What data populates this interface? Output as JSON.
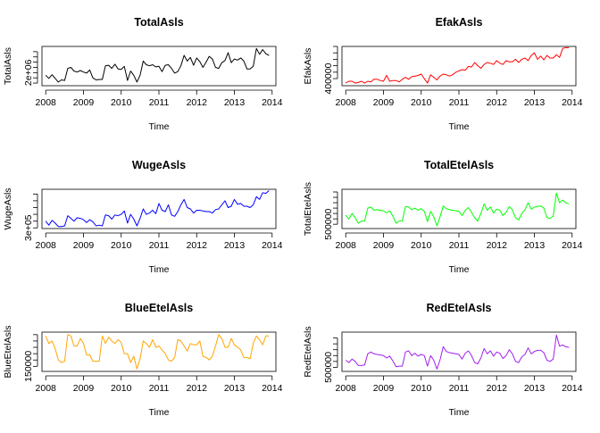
{
  "figure": {
    "background": "#ffffff"
  },
  "chart_data": [
    {
      "type": "line",
      "title": "TotalAsls",
      "xlabel": "Time",
      "ylabel": "TotalAsls",
      "color": "#000000",
      "xlim": [
        2007.9,
        2014.1
      ],
      "ylim": [
        1750000,
        2500000
      ],
      "x_ticks": [
        2008,
        2009,
        2010,
        2011,
        2012,
        2013,
        2014
      ],
      "y_ticks": [
        1800000,
        1900000,
        2000000,
        2100000,
        2200000,
        2300000,
        2400000
      ],
      "y_tick_labels": [
        "",
        "",
        "2e+06",
        "",
        "",
        "",
        ""
      ],
      "x": [
        2008.0,
        2008.083,
        2008.167,
        2008.25,
        2008.333,
        2008.417,
        2008.5,
        2008.583,
        2008.667,
        2008.75,
        2008.833,
        2008.917,
        2009.0,
        2009.083,
        2009.167,
        2009.25,
        2009.333,
        2009.417,
        2009.5,
        2009.583,
        2009.667,
        2009.75,
        2009.833,
        2009.917,
        2010.0,
        2010.083,
        2010.167,
        2010.25,
        2010.333,
        2010.417,
        2010.5,
        2010.583,
        2010.667,
        2010.75,
        2010.833,
        2010.917,
        2011.0,
        2011.083,
        2011.167,
        2011.25,
        2011.333,
        2011.417,
        2011.5,
        2011.583,
        2011.667,
        2011.75,
        2011.833,
        2011.917,
        2012.0,
        2012.083,
        2012.167,
        2012.25,
        2012.333,
        2012.417,
        2012.5,
        2012.583,
        2012.667,
        2012.75,
        2012.833,
        2012.917,
        2013.0,
        2013.083,
        2013.167,
        2013.25,
        2013.333,
        2013.417,
        2013.5,
        2013.583,
        2013.667,
        2013.75,
        2013.833,
        2013.917
      ],
      "values": [
        1950000,
        1890000,
        1960000,
        1890000,
        1820000,
        1860000,
        1850000,
        2080000,
        2100000,
        2030000,
        2010000,
        2040000,
        2010000,
        1990000,
        2050000,
        1900000,
        1860000,
        1870000,
        1870000,
        2130000,
        2140000,
        2080000,
        2160000,
        2070000,
        2060000,
        2120000,
        1850000,
        2030000,
        1950000,
        1820000,
        1950000,
        2220000,
        2150000,
        2130000,
        2150000,
        2110000,
        2120000,
        2020000,
        2140000,
        2150000,
        2080000,
        1990000,
        2020000,
        2130000,
        2330000,
        2220000,
        2290000,
        2140000,
        2280000,
        2210000,
        2100000,
        2200000,
        2310000,
        2260000,
        2100000,
        2080000,
        2190000,
        2230000,
        2380000,
        2190000,
        2260000,
        2240000,
        2280000,
        2220000,
        2070000,
        2070000,
        2120000,
        2460000,
        2350000,
        2440000,
        2360000,
        2330000
      ]
    },
    {
      "type": "line",
      "title": "EfakAsls",
      "xlabel": "Time",
      "ylabel": "EfakAsls",
      "color": "#ff0000",
      "xlim": [
        2007.9,
        2014.1
      ],
      "ylim": [
        290000,
        900000
      ],
      "x_ticks": [
        2008,
        2009,
        2010,
        2011,
        2012,
        2013,
        2014
      ],
      "y_ticks": [
        400000,
        500000,
        600000,
        700000,
        800000,
        900000
      ],
      "y_tick_labels": [
        "400000",
        "",
        "",
        "",
        "",
        ""
      ],
      "x": [
        2008.0,
        2008.083,
        2008.167,
        2008.25,
        2008.333,
        2008.417,
        2008.5,
        2008.583,
        2008.667,
        2008.75,
        2008.833,
        2008.917,
        2009.0,
        2009.083,
        2009.167,
        2009.25,
        2009.333,
        2009.417,
        2009.5,
        2009.583,
        2009.667,
        2009.75,
        2009.833,
        2009.917,
        2010.0,
        2010.083,
        2010.167,
        2010.25,
        2010.333,
        2010.417,
        2010.5,
        2010.583,
        2010.667,
        2010.75,
        2010.833,
        2010.917,
        2011.0,
        2011.083,
        2011.167,
        2011.25,
        2011.333,
        2011.417,
        2011.5,
        2011.583,
        2011.667,
        2011.75,
        2011.833,
        2011.917,
        2012.0,
        2012.083,
        2012.167,
        2012.25,
        2012.333,
        2012.417,
        2012.5,
        2012.583,
        2012.667,
        2012.75,
        2012.833,
        2012.917,
        2013.0,
        2013.083,
        2013.167,
        2013.25,
        2013.333,
        2013.417,
        2013.5,
        2013.583,
        2013.667,
        2013.75,
        2013.833,
        2013.917
      ],
      "values": [
        330000,
        360000,
        360000,
        330000,
        340000,
        360000,
        330000,
        360000,
        350000,
        390000,
        390000,
        370000,
        360000,
        450000,
        360000,
        370000,
        370000,
        350000,
        390000,
        420000,
        390000,
        430000,
        440000,
        450000,
        470000,
        400000,
        330000,
        460000,
        420000,
        380000,
        440000,
        470000,
        460000,
        440000,
        460000,
        500000,
        520000,
        540000,
        530000,
        590000,
        580000,
        650000,
        600000,
        560000,
        620000,
        650000,
        640000,
        620000,
        680000,
        640000,
        620000,
        680000,
        660000,
        660000,
        700000,
        650000,
        700000,
        720000,
        680000,
        760000,
        800000,
        700000,
        750000,
        690000,
        760000,
        720000,
        720000,
        770000,
        730000,
        870000,
        880000,
        880000
      ]
    },
    {
      "type": "line",
      "title": "WugeAsls",
      "xlabel": "Time",
      "ylabel": "WugeAsls",
      "color": "#0000ff",
      "xlim": [
        2007.9,
        2014.1
      ],
      "ylim": [
        290000,
        870000
      ],
      "x_ticks": [
        2008,
        2009,
        2010,
        2011,
        2012,
        2013,
        2014
      ],
      "y_ticks": [
        300000,
        400000,
        500000,
        600000,
        700000,
        800000
      ],
      "y_tick_labels": [
        "3e+05",
        "",
        "",
        "",
        "",
        ""
      ],
      "x": [
        2008.0,
        2008.083,
        2008.167,
        2008.25,
        2008.333,
        2008.417,
        2008.5,
        2008.583,
        2008.667,
        2008.75,
        2008.833,
        2008.917,
        2009.0,
        2009.083,
        2009.167,
        2009.25,
        2009.333,
        2009.417,
        2009.5,
        2009.583,
        2009.667,
        2009.75,
        2009.833,
        2009.917,
        2010.0,
        2010.083,
        2010.167,
        2010.25,
        2010.333,
        2010.417,
        2010.5,
        2010.583,
        2010.667,
        2010.75,
        2010.833,
        2010.917,
        2011.0,
        2011.083,
        2011.167,
        2011.25,
        2011.333,
        2011.417,
        2011.5,
        2011.583,
        2011.667,
        2011.75,
        2011.833,
        2011.917,
        2012.0,
        2012.083,
        2012.167,
        2012.25,
        2012.333,
        2012.417,
        2012.5,
        2012.583,
        2012.667,
        2012.75,
        2012.833,
        2012.917,
        2013.0,
        2013.083,
        2013.167,
        2013.25,
        2013.333,
        2013.417,
        2013.5,
        2013.583,
        2013.667,
        2013.75,
        2013.833,
        2013.917
      ],
      "values": [
        400000,
        340000,
        410000,
        370000,
        320000,
        320000,
        330000,
        480000,
        440000,
        400000,
        450000,
        440000,
        420000,
        380000,
        420000,
        390000,
        330000,
        340000,
        330000,
        490000,
        480000,
        430000,
        490000,
        480000,
        500000,
        550000,
        370000,
        500000,
        430000,
        330000,
        440000,
        580000,
        500000,
        520000,
        560000,
        510000,
        660000,
        560000,
        540000,
        640000,
        490000,
        470000,
        540000,
        640000,
        720000,
        600000,
        580000,
        520000,
        560000,
        560000,
        550000,
        540000,
        540000,
        520000,
        570000,
        580000,
        640000,
        700000,
        600000,
        620000,
        720000,
        650000,
        660000,
        620000,
        620000,
        600000,
        640000,
        760000,
        720000,
        820000,
        810000,
        850000
      ]
    },
    {
      "type": "line",
      "title": "TotalEtelAsls",
      "xlabel": "Time",
      "ylabel": "TotalEtelAsls",
      "color": "#00ff00",
      "xlim": [
        2007.9,
        2014.1
      ],
      "ylim": [
        420000,
        1150000
      ],
      "x_ticks": [
        2008,
        2009,
        2010,
        2011,
        2012,
        2013,
        2014
      ],
      "y_ticks": [
        500000,
        600000,
        700000,
        800000,
        900000,
        1000000,
        1100000
      ],
      "y_tick_labels": [
        "500000",
        "",
        "",
        "",
        "",
        "",
        ""
      ],
      "x": [
        2008.0,
        2008.083,
        2008.167,
        2008.25,
        2008.333,
        2008.417,
        2008.5,
        2008.583,
        2008.667,
        2008.75,
        2008.833,
        2008.917,
        2009.0,
        2009.083,
        2009.167,
        2009.25,
        2009.333,
        2009.417,
        2009.5,
        2009.583,
        2009.667,
        2009.75,
        2009.833,
        2009.917,
        2010.0,
        2010.083,
        2010.167,
        2010.25,
        2010.333,
        2010.417,
        2010.5,
        2010.583,
        2010.667,
        2010.75,
        2010.833,
        2010.917,
        2011.0,
        2011.083,
        2011.167,
        2011.25,
        2011.333,
        2011.417,
        2011.5,
        2011.583,
        2011.667,
        2011.75,
        2011.833,
        2011.917,
        2012.0,
        2012.083,
        2012.167,
        2012.25,
        2012.333,
        2012.417,
        2012.5,
        2012.583,
        2012.667,
        2012.75,
        2012.833,
        2012.917,
        2013.0,
        2013.083,
        2013.167,
        2013.25,
        2013.333,
        2013.417,
        2013.5,
        2013.583,
        2013.667,
        2013.75,
        2013.833,
        2013.917
      ],
      "values": [
        670000,
        600000,
        700000,
        620000,
        520000,
        560000,
        560000,
        800000,
        820000,
        760000,
        770000,
        760000,
        750000,
        710000,
        750000,
        650000,
        520000,
        560000,
        560000,
        830000,
        820000,
        770000,
        800000,
        760000,
        790000,
        740000,
        550000,
        740000,
        640000,
        470000,
        640000,
        840000,
        790000,
        770000,
        760000,
        750000,
        740000,
        660000,
        760000,
        810000,
        720000,
        620000,
        560000,
        700000,
        880000,
        760000,
        820000,
        710000,
        780000,
        760000,
        660000,
        720000,
        830000,
        770000,
        620000,
        580000,
        700000,
        770000,
        900000,
        780000,
        820000,
        830000,
        840000,
        800000,
        620000,
        610000,
        650000,
        1080000,
        900000,
        950000,
        900000,
        880000
      ]
    },
    {
      "type": "line",
      "title": "BlueEtelAsls",
      "xlabel": "Time",
      "ylabel": "BlueEtelAsls",
      "color": "#ffa500",
      "xlim": [
        2007.9,
        2014.1
      ],
      "ylim": [
        110000,
        420000
      ],
      "x_ticks": [
        2008,
        2009,
        2010,
        2011,
        2012,
        2013,
        2014
      ],
      "y_ticks": [
        150000,
        200000,
        250000,
        300000,
        350000,
        400000
      ],
      "y_tick_labels": [
        "150000",
        "",
        "",
        "",
        "",
        ""
      ],
      "x": [
        2008.0,
        2008.083,
        2008.167,
        2008.25,
        2008.333,
        2008.417,
        2008.5,
        2008.583,
        2008.667,
        2008.75,
        2008.833,
        2008.917,
        2009.0,
        2009.083,
        2009.167,
        2009.25,
        2009.333,
        2009.417,
        2009.5,
        2009.583,
        2009.667,
        2009.75,
        2009.833,
        2009.917,
        2010.0,
        2010.083,
        2010.167,
        2010.25,
        2010.333,
        2010.417,
        2010.5,
        2010.583,
        2010.667,
        2010.75,
        2010.833,
        2010.917,
        2011.0,
        2011.083,
        2011.167,
        2011.25,
        2011.333,
        2011.417,
        2011.5,
        2011.583,
        2011.667,
        2011.75,
        2011.833,
        2011.917,
        2012.0,
        2012.083,
        2012.167,
        2012.25,
        2012.333,
        2012.417,
        2012.5,
        2012.583,
        2012.667,
        2012.75,
        2012.833,
        2012.917,
        2013.0,
        2013.083,
        2013.167,
        2013.25,
        2013.333,
        2013.417,
        2013.5,
        2013.583,
        2013.667,
        2013.75,
        2013.833,
        2013.917
      ],
      "values": [
        390000,
        330000,
        350000,
        290000,
        200000,
        180000,
        190000,
        400000,
        390000,
        310000,
        310000,
        370000,
        330000,
        240000,
        240000,
        190000,
        190000,
        190000,
        390000,
        330000,
        380000,
        350000,
        330000,
        360000,
        340000,
        250000,
        250000,
        180000,
        230000,
        130000,
        210000,
        350000,
        330000,
        300000,
        360000,
        300000,
        310000,
        280000,
        250000,
        200000,
        190000,
        220000,
        360000,
        350000,
        310000,
        270000,
        330000,
        320000,
        320000,
        350000,
        230000,
        220000,
        200000,
        230000,
        310000,
        400000,
        370000,
        300000,
        300000,
        370000,
        320000,
        300000,
        280000,
        220000,
        220000,
        210000,
        330000,
        390000,
        360000,
        320000,
        390000,
        390000
      ]
    },
    {
      "type": "line",
      "title": "RedEtelAsls",
      "xlabel": "Time",
      "ylabel": "RedEtelAsls",
      "color": "#a020f0",
      "xlim": [
        2007.9,
        2014.1
      ],
      "ylim": [
        430000,
        1100000
      ],
      "x_ticks": [
        2008,
        2009,
        2010,
        2011,
        2012,
        2013,
        2014
      ],
      "y_ticks": [
        500000,
        600000,
        700000,
        800000,
        900000,
        1000000
      ],
      "y_tick_labels": [
        "500000",
        "",
        "",
        "",
        "",
        ""
      ],
      "x": [
        2008.0,
        2008.083,
        2008.167,
        2008.25,
        2008.333,
        2008.417,
        2008.5,
        2008.583,
        2008.667,
        2008.75,
        2008.833,
        2008.917,
        2009.0,
        2009.083,
        2009.167,
        2009.25,
        2009.333,
        2009.417,
        2009.5,
        2009.583,
        2009.667,
        2009.75,
        2009.833,
        2009.917,
        2010.0,
        2010.083,
        2010.167,
        2010.25,
        2010.333,
        2010.417,
        2010.5,
        2010.583,
        2010.667,
        2010.75,
        2010.833,
        2010.917,
        2011.0,
        2011.083,
        2011.167,
        2011.25,
        2011.333,
        2011.417,
        2011.5,
        2011.583,
        2011.667,
        2011.75,
        2011.833,
        2011.917,
        2012.0,
        2012.083,
        2012.167,
        2012.25,
        2012.333,
        2012.417,
        2012.5,
        2012.583,
        2012.667,
        2012.75,
        2012.833,
        2012.917,
        2013.0,
        2013.083,
        2013.167,
        2013.25,
        2013.333,
        2013.417,
        2013.5,
        2013.583,
        2013.667,
        2013.75,
        2013.833,
        2013.917
      ],
      "values": [
        620000,
        580000,
        640000,
        600000,
        530000,
        530000,
        540000,
        730000,
        760000,
        730000,
        720000,
        710000,
        700000,
        660000,
        690000,
        610000,
        510000,
        520000,
        520000,
        760000,
        780000,
        700000,
        740000,
        690000,
        720000,
        700000,
        520000,
        700000,
        620000,
        470000,
        630000,
        850000,
        770000,
        750000,
        740000,
        730000,
        720000,
        640000,
        740000,
        780000,
        700000,
        580000,
        560000,
        660000,
        820000,
        730000,
        780000,
        690000,
        760000,
        740000,
        650000,
        700000,
        800000,
        730000,
        600000,
        580000,
        680000,
        720000,
        830000,
        730000,
        770000,
        790000,
        790000,
        750000,
        620000,
        600000,
        640000,
        1050000,
        860000,
        880000,
        850000,
        840000
      ]
    }
  ]
}
